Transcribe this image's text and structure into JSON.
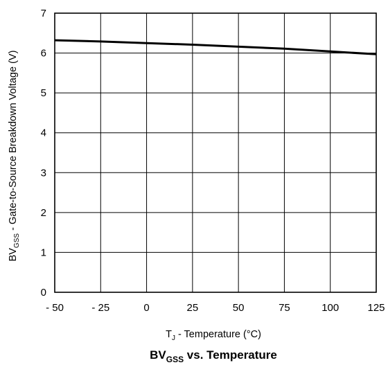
{
  "chart_data": {
    "type": "line",
    "title": {
      "main": "BV",
      "sub": "GSS",
      "rest": " vs. Temperature"
    },
    "xlabel": {
      "main": "T",
      "sub": "J",
      "rest": " - Temperature (°C)"
    },
    "ylabel": {
      "main": "BV",
      "sub": "GSS",
      "rest": " - Gate-to-Source Breakdown Voltage (V)"
    },
    "xlim": [
      -50,
      125
    ],
    "ylim": [
      0,
      7
    ],
    "xticks": [
      -50,
      -25,
      0,
      25,
      50,
      75,
      100,
      125
    ],
    "xtick_labels": [
      "- 50",
      "- 25",
      "0",
      "25",
      "50",
      "75",
      "100",
      "125"
    ],
    "yticks": [
      0,
      1,
      2,
      3,
      4,
      5,
      6,
      7
    ],
    "ytick_labels": [
      "0",
      "1",
      "2",
      "3",
      "4",
      "5",
      "6",
      "7"
    ],
    "grid": true,
    "series": [
      {
        "x": [
          -50,
          -25,
          0,
          25,
          50,
          75,
          100,
          125
        ],
        "y": [
          6.32,
          6.29,
          6.25,
          6.21,
          6.16,
          6.11,
          6.04,
          5.97
        ],
        "color": "#000000"
      }
    ]
  }
}
